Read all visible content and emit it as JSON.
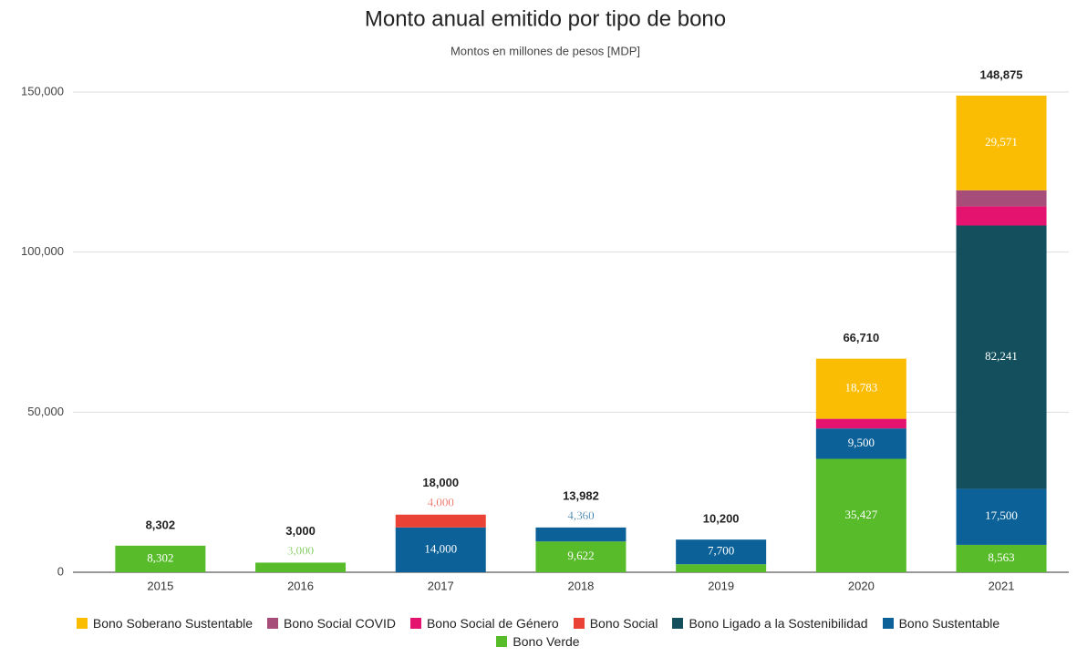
{
  "chart_data": {
    "type": "stacked_bar",
    "title": "Monto anual emitido por tipo de bono",
    "subtitle": "Montos en millones de pesos [MDP]",
    "categories": [
      "2015",
      "2016",
      "2017",
      "2018",
      "2019",
      "2020",
      "2021"
    ],
    "series": [
      {
        "name": "Bono Soberano Sustentable",
        "color": "#fbbc04",
        "values": [
          null,
          null,
          null,
          null,
          null,
          18783,
          29571
        ],
        "value_labels": [
          null,
          null,
          null,
          null,
          null,
          "18,783",
          "29,571"
        ]
      },
      {
        "name": "Bono Social COVID",
        "color": "#a64d79",
        "values": [
          null,
          null,
          null,
          null,
          null,
          null,
          5000
        ],
        "value_labels": [
          null,
          null,
          null,
          null,
          null,
          null,
          "5,000"
        ]
      },
      {
        "name": "Bono Social de Género",
        "color": "#e3136f",
        "values": [
          null,
          null,
          null,
          null,
          null,
          3000,
          6000
        ],
        "value_labels": [
          null,
          null,
          null,
          null,
          null,
          "3,000",
          "6,000"
        ]
      },
      {
        "name": "Bono Social",
        "color": "#ea4335",
        "values": [
          null,
          null,
          4000,
          null,
          null,
          null,
          null
        ],
        "value_labels": [
          null,
          null,
          "4,000",
          null,
          null,
          null,
          null
        ]
      },
      {
        "name": "Bono Ligado a la Sostenibilidad",
        "color": "#134f5c",
        "values": [
          null,
          null,
          null,
          null,
          null,
          null,
          82241
        ],
        "value_labels": [
          null,
          null,
          null,
          null,
          null,
          null,
          "82,241"
        ]
      },
      {
        "name": "Bono Sustentable",
        "color": "#0b6198",
        "values": [
          null,
          null,
          14000,
          4360,
          7700,
          9500,
          17500
        ],
        "value_labels": [
          null,
          null,
          "14,000",
          "4,360",
          "7,700",
          "9,500",
          "17,500"
        ]
      },
      {
        "name": "Bono Verde",
        "color": "#57bb2a",
        "values": [
          8302,
          3000,
          null,
          9622,
          2500,
          35427,
          8563
        ],
        "value_labels": [
          "8,302",
          "3,000",
          null,
          "9,622",
          "2,500",
          "35,427",
          "8,563"
        ]
      }
    ],
    "totals": [
      8302,
      3000,
      18000,
      13982,
      10200,
      66710,
      148875
    ],
    "total_labels": [
      "8,302",
      "3,000",
      "18,000",
      "13,982",
      "10,200",
      "66,710",
      "148,875"
    ],
    "ylim": [
      0,
      150000
    ],
    "yticks": [
      {
        "value": 0,
        "label": "0"
      },
      {
        "value": 50000,
        "label": "50,000"
      },
      {
        "value": 100000,
        "label": "100,000"
      },
      {
        "value": 150000,
        "label": "150,000"
      }
    ],
    "grid": true,
    "legend": "bottom"
  }
}
